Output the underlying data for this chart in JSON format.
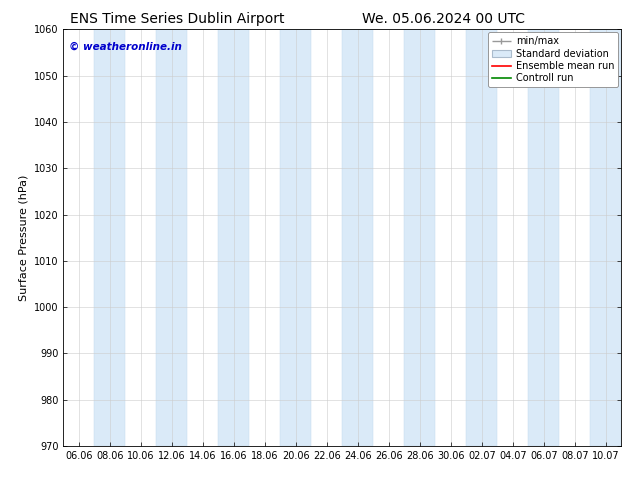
{
  "title_left": "ENS Time Series Dublin Airport",
  "title_right": "We. 05.06.2024 00 UTC",
  "ylabel": "Surface Pressure (hPa)",
  "ylim": [
    970,
    1060
  ],
  "yticks": [
    970,
    980,
    990,
    1000,
    1010,
    1020,
    1030,
    1040,
    1050,
    1060
  ],
  "xlabel_ticks": [
    "06.06",
    "08.06",
    "10.06",
    "12.06",
    "14.06",
    "16.06",
    "18.06",
    "20.06",
    "22.06",
    "24.06",
    "26.06",
    "28.06",
    "30.06",
    "02.07",
    "04.07",
    "06.07",
    "08.07",
    "10.07"
  ],
  "watermark": "© weatheronline.in",
  "watermark_color": "#0000cc",
  "bg_color": "#ffffff",
  "plot_bg_color": "#ffffff",
  "band_color": "#daeaf8",
  "band_edge_color": "#c0d8ee",
  "legend_labels": [
    "min/max",
    "Standard deviation",
    "Ensemble mean run",
    "Controll run"
  ],
  "legend_line_color": "#999999",
  "legend_std_face": "#daeaf8",
  "legend_std_edge": "#aabbcc",
  "legend_ens_color": "#ff0000",
  "legend_ctrl_color": "#008800",
  "grid_color": "#cccccc",
  "spine_color": "#888888",
  "title_fontsize": 10,
  "tick_fontsize": 7,
  "ylabel_fontsize": 8,
  "watermark_fontsize": 7.5,
  "legend_fontsize": 7,
  "band_positions": [
    1,
    3,
    5,
    7,
    9,
    11,
    13,
    15,
    17
  ],
  "n_xticks": 18
}
